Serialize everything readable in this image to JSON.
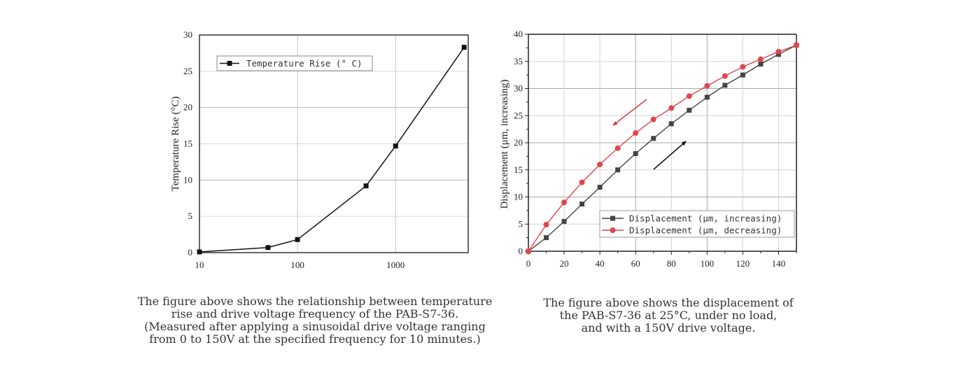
{
  "chart_data": [
    {
      "type": "line",
      "title": "",
      "xlabel": "",
      "ylabel": "Temperature Rise (°C)",
      "xscale": "log",
      "xlim": [
        10,
        5500
      ],
      "ylim": [
        0,
        30
      ],
      "xticks": [
        10,
        100,
        1000
      ],
      "xtick_labels": [
        "10",
        "100",
        "1000"
      ],
      "yticks": [
        0,
        5,
        10,
        15,
        20,
        25,
        30
      ],
      "ytick_labels": [
        "0",
        "5",
        "10",
        "15",
        "20",
        "25",
        "30"
      ],
      "grid": true,
      "legend_position": "top-left",
      "series": [
        {
          "name": "Temperature Rise (° C)",
          "color": "#111111",
          "marker": "square",
          "x": [
            10,
            50,
            100,
            500,
            1000,
            5000
          ],
          "y": [
            0.1,
            0.7,
            1.8,
            9.2,
            14.7,
            28.3
          ]
        }
      ]
    },
    {
      "type": "line",
      "title": "",
      "xlabel": "",
      "ylabel": "Displacement (μm, increasing)",
      "xlim": [
        0,
        150
      ],
      "ylim": [
        0,
        40
      ],
      "xticks": [
        0,
        20,
        40,
        60,
        80,
        100,
        120,
        140
      ],
      "xtick_labels": [
        "0",
        "20",
        "40",
        "60",
        "80",
        "100",
        "120",
        "140"
      ],
      "yticks": [
        0,
        5,
        10,
        15,
        20,
        25,
        30,
        35,
        40
      ],
      "ytick_labels": [
        "0",
        "5",
        "10",
        "15",
        "20",
        "25",
        "30",
        "35",
        "40"
      ],
      "grid": true,
      "legend_position": "bottom-right",
      "annotations": [
        {
          "type": "arrow",
          "direction": "down-left",
          "color": "#d83a3a",
          "meaning": "decreasing"
        },
        {
          "type": "arrow",
          "direction": "up-right",
          "color": "#111111",
          "meaning": "increasing"
        }
      ],
      "series": [
        {
          "name": "Displacement (μm, increasing)",
          "color": "#444444",
          "marker": "square",
          "x": [
            0,
            10,
            20,
            30,
            40,
            50,
            60,
            70,
            80,
            90,
            100,
            110,
            120,
            130,
            140,
            150
          ],
          "y": [
            0,
            2.5,
            5.5,
            8.7,
            11.8,
            15.0,
            18.0,
            20.8,
            23.5,
            26.0,
            28.4,
            30.6,
            32.5,
            34.5,
            36.3,
            38.0
          ]
        },
        {
          "name": "Displacement (μm, decreasing)",
          "color": "#e0454b",
          "marker": "circle",
          "x": [
            0,
            10,
            20,
            30,
            40,
            50,
            60,
            70,
            80,
            90,
            100,
            110,
            120,
            130,
            140,
            150
          ],
          "y": [
            0,
            4.9,
            9.0,
            12.7,
            16.0,
            19.0,
            21.8,
            24.3,
            26.4,
            28.6,
            30.5,
            32.3,
            34.0,
            35.4,
            36.8,
            38.0
          ]
        }
      ]
    }
  ],
  "captions": {
    "left": [
      "The figure above shows the relationship between temperature",
      "rise and drive voltage frequency of the PAB-S7-36.",
      "(Measured after applying a sinusoidal drive voltage ranging",
      "from 0 to 150V at the specified frequency for 10 minutes.)"
    ],
    "right": [
      "The figure above shows the displacement of",
      "the PAB-S7-36 at 25°C, under no load,",
      "and with a 150V drive voltage."
    ]
  }
}
